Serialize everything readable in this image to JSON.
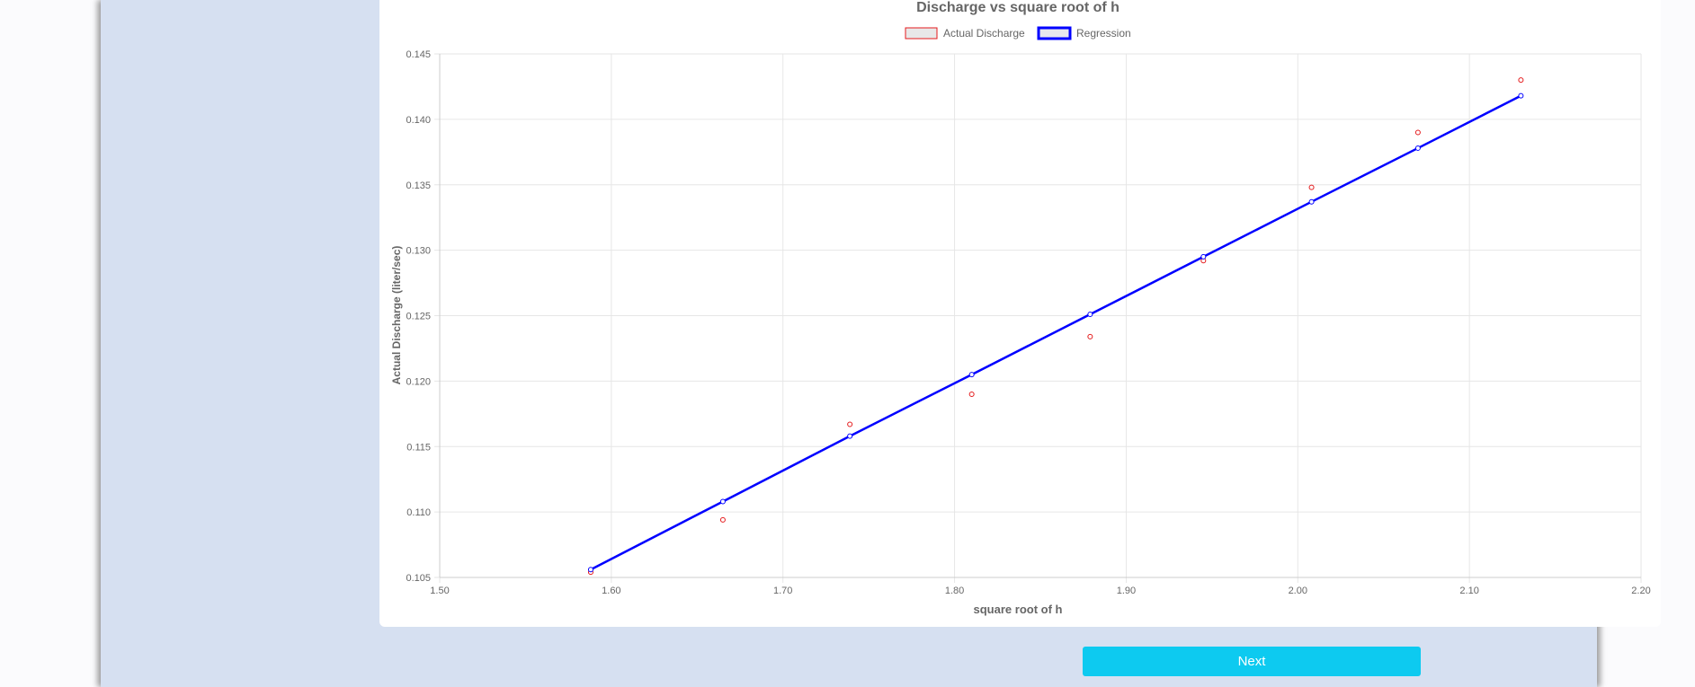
{
  "next_button": {
    "label": "Next"
  },
  "chart_data": {
    "type": "scatter",
    "title": "Discharge vs square root of h",
    "xlabel": "square root of h",
    "ylabel": "Actual Discharge (liter/sec)",
    "xlim": [
      1.5,
      2.2
    ],
    "ylim": [
      0.105,
      0.145
    ],
    "x_ticks": [
      "1.50",
      "1.60",
      "1.70",
      "1.80",
      "1.90",
      "2.00",
      "2.10",
      "2.20"
    ],
    "y_ticks": [
      "0.105",
      "0.110",
      "0.115",
      "0.120",
      "0.125",
      "0.130",
      "0.135",
      "0.140",
      "0.145"
    ],
    "grid": true,
    "legend_position": "top-center",
    "series": [
      {
        "name": "Actual Discharge",
        "kind": "scatter",
        "color": "#e41a1c",
        "points": [
          {
            "x": 1.588,
            "y": 0.1054
          },
          {
            "x": 1.665,
            "y": 0.1094
          },
          {
            "x": 1.739,
            "y": 0.1167
          },
          {
            "x": 1.81,
            "y": 0.119
          },
          {
            "x": 1.879,
            "y": 0.1234
          },
          {
            "x": 1.945,
            "y": 0.1292
          },
          {
            "x": 2.008,
            "y": 0.1348
          },
          {
            "x": 2.07,
            "y": 0.139
          },
          {
            "x": 2.13,
            "y": 0.143
          }
        ]
      },
      {
        "name": "Regression",
        "kind": "line",
        "color": "#0000ff",
        "points": [
          {
            "x": 1.588,
            "y": 0.1056
          },
          {
            "x": 1.665,
            "y": 0.1108
          },
          {
            "x": 1.739,
            "y": 0.1158
          },
          {
            "x": 1.81,
            "y": 0.1205
          },
          {
            "x": 1.879,
            "y": 0.1251
          },
          {
            "x": 1.945,
            "y": 0.1295
          },
          {
            "x": 2.008,
            "y": 0.1337
          },
          {
            "x": 2.07,
            "y": 0.1378
          },
          {
            "x": 2.13,
            "y": 0.1418
          }
        ]
      }
    ]
  }
}
